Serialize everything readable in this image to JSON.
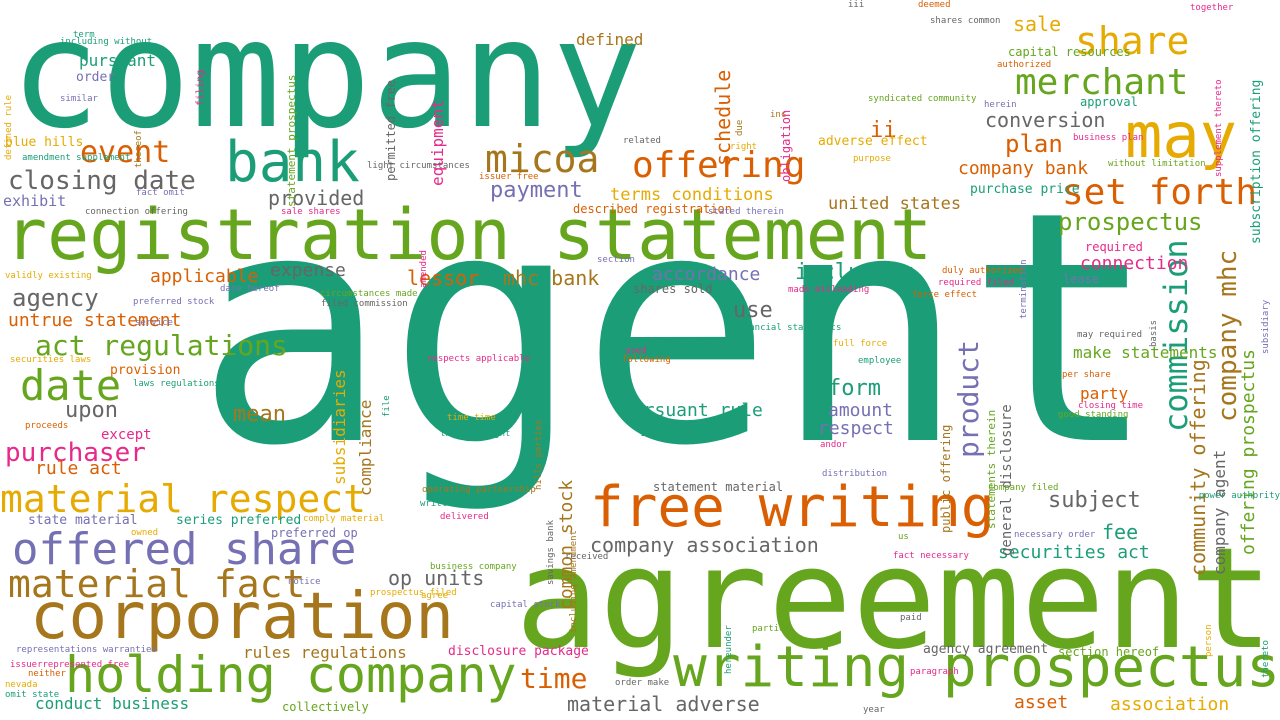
{
  "palette": {
    "teal": "#1b9e77",
    "orange": "#d95f02",
    "purple": "#7570b3",
    "pink": "#e7298a",
    "green": "#66a61e",
    "mustard": "#e6ab02",
    "brown": "#a6761d",
    "gray": "#666666"
  },
  "words": [
    {
      "text": "company",
      "color": "teal"
    },
    {
      "text": "agent",
      "color": "teal"
    },
    {
      "text": "agreement",
      "color": "green"
    },
    {
      "text": "registration statement",
      "color": "green"
    },
    {
      "text": "free writing",
      "color": "orange"
    },
    {
      "text": "writing prospectus",
      "color": "green"
    },
    {
      "text": "corporation",
      "color": "brown"
    },
    {
      "text": "holding company",
      "color": "green"
    },
    {
      "text": "bank",
      "color": "teal"
    },
    {
      "text": "may",
      "color": "mustard"
    },
    {
      "text": "material respect",
      "color": "mustard"
    },
    {
      "text": "offered share",
      "color": "purple"
    },
    {
      "text": "material fact",
      "color": "brown"
    },
    {
      "text": "date",
      "color": "green"
    },
    {
      "text": "micoa",
      "color": "brown"
    },
    {
      "text": "offering",
      "color": "orange"
    },
    {
      "text": "share",
      "color": "mustard"
    },
    {
      "text": "merchant",
      "color": "green"
    },
    {
      "text": "set forth",
      "color": "orange"
    },
    {
      "text": "commission",
      "color": "teal"
    },
    {
      "text": "company mhc",
      "color": "brown"
    },
    {
      "text": "product",
      "color": "purple"
    },
    {
      "text": "event",
      "color": "orange"
    },
    {
      "text": "closing date",
      "color": "gray"
    },
    {
      "text": "act regulations",
      "color": "green"
    },
    {
      "text": "purchaser",
      "color": "pink"
    },
    {
      "text": "time",
      "color": "orange"
    },
    {
      "text": "plan",
      "color": "orange"
    },
    {
      "text": "conversion",
      "color": "gray"
    },
    {
      "text": "prospectus",
      "color": "green"
    },
    {
      "text": "community offering",
      "color": "brown"
    },
    {
      "text": "offering prospectus",
      "color": "green"
    },
    {
      "text": "ii",
      "color": "orange"
    },
    {
      "text": "company bank",
      "color": "orange"
    },
    {
      "text": "united states",
      "color": "brown"
    },
    {
      "text": "payment",
      "color": "purple"
    },
    {
      "text": "terms conditions",
      "color": "mustard"
    },
    {
      "text": "provided",
      "color": "gray"
    },
    {
      "text": "including",
      "color": "teal"
    },
    {
      "text": "accordance",
      "color": "purple"
    },
    {
      "text": "mhc bank",
      "color": "brown"
    },
    {
      "text": "lessor",
      "color": "orange"
    },
    {
      "text": "expense",
      "color": "gray"
    },
    {
      "text": "applicable",
      "color": "orange"
    },
    {
      "text": "agency",
      "color": "gray"
    },
    {
      "text": "untrue statement",
      "color": "orange"
    },
    {
      "text": "use",
      "color": "gray"
    },
    {
      "text": "form",
      "color": "teal"
    },
    {
      "text": "amount",
      "color": "purple"
    },
    {
      "text": "respect",
      "color": "purple"
    },
    {
      "text": "pursuant rule",
      "color": "teal"
    },
    {
      "text": "include",
      "color": "teal"
    },
    {
      "text": "upon",
      "color": "gray"
    },
    {
      "text": "mean",
      "color": "brown"
    },
    {
      "text": "rule act",
      "color": "orange"
    },
    {
      "text": "subsidiaries",
      "color": "mustard"
    },
    {
      "text": "compliance",
      "color": "brown"
    },
    {
      "text": "common stock",
      "color": "brown"
    },
    {
      "text": "company association",
      "color": "gray"
    },
    {
      "text": "subject",
      "color": "gray"
    },
    {
      "text": "fee",
      "color": "teal"
    },
    {
      "text": "securities act",
      "color": "teal"
    },
    {
      "text": "op units",
      "color": "gray"
    },
    {
      "text": "rules regulations",
      "color": "brown"
    },
    {
      "text": "conduct business",
      "color": "teal"
    },
    {
      "text": "material adverse",
      "color": "gray"
    },
    {
      "text": "asset",
      "color": "orange"
    },
    {
      "text": "association",
      "color": "mustard"
    },
    {
      "text": "section hereof",
      "color": "green"
    },
    {
      "text": "agency agreement",
      "color": "gray"
    },
    {
      "text": "disclosure package",
      "color": "pink"
    },
    {
      "text": "collectively",
      "color": "green"
    },
    {
      "text": "sale",
      "color": "mustard"
    },
    {
      "text": "defined",
      "color": "brown"
    },
    {
      "text": "schedule",
      "color": "orange"
    },
    {
      "text": "pursuant",
      "color": "teal"
    },
    {
      "text": "order",
      "color": "purple"
    },
    {
      "text": "blue hills",
      "color": "mustard"
    },
    {
      "text": "exhibit",
      "color": "purple"
    },
    {
      "text": "equipment",
      "color": "pink"
    },
    {
      "text": "permitted free",
      "color": "gray"
    },
    {
      "text": "statement prospectus",
      "color": "green"
    },
    {
      "text": "capital resources",
      "color": "green"
    },
    {
      "text": "approval",
      "color": "teal"
    },
    {
      "text": "subscription offering",
      "color": "teal"
    },
    {
      "text": "obligation",
      "color": "pink"
    },
    {
      "text": "adverse effect",
      "color": "mustard"
    },
    {
      "text": "purchase price",
      "color": "teal"
    },
    {
      "text": "connection",
      "color": "pink"
    },
    {
      "text": "lease",
      "color": "purple"
    },
    {
      "text": "required",
      "color": "pink"
    },
    {
      "text": "make statements",
      "color": "green"
    },
    {
      "text": "party",
      "color": "orange"
    },
    {
      "text": "claim",
      "color": "teal"
    },
    {
      "text": "except",
      "color": "pink"
    },
    {
      "text": "provision",
      "color": "orange"
    },
    {
      "text": "state material",
      "color": "purple"
    },
    {
      "text": "series preferred",
      "color": "teal"
    },
    {
      "text": "preferred op",
      "color": "purple"
    },
    {
      "text": "shares sold",
      "color": "gray"
    },
    {
      "text": "statement material",
      "color": "gray"
    },
    {
      "text": "described registration",
      "color": "orange"
    },
    {
      "text": "public offering",
      "color": "brown"
    },
    {
      "text": "statements therein",
      "color": "green"
    },
    {
      "text": "general disclosure",
      "color": "gray"
    },
    {
      "text": "company agent",
      "color": "gray"
    },
    {
      "text": "thereof",
      "color": "brown"
    },
    {
      "text": "filing",
      "color": "pink"
    },
    {
      "text": "term",
      "color": "teal"
    },
    {
      "text": "including without",
      "color": "teal"
    },
    {
      "text": "similar",
      "color": "purple"
    },
    {
      "text": "defined rule",
      "color": "mustard"
    },
    {
      "text": "amendment supplement",
      "color": "teal"
    },
    {
      "text": "fact omit",
      "color": "purple"
    },
    {
      "text": "connection offering",
      "color": "gray"
    },
    {
      "text": "sale shares",
      "color": "pink"
    },
    {
      "text": "validly existing",
      "color": "mustard"
    },
    {
      "text": "preferred stock",
      "color": "purple"
    },
    {
      "text": "service",
      "color": "purple"
    },
    {
      "text": "date hereof",
      "color": "purple"
    },
    {
      "text": "circumstances made",
      "color": "green"
    },
    {
      "text": "filed commission",
      "color": "gray"
    },
    {
      "text": "securities laws",
      "color": "mustard"
    },
    {
      "text": "laws regulations",
      "color": "teal"
    },
    {
      "text": "proceeds",
      "color": "orange"
    },
    {
      "text": "file",
      "color": "teal"
    },
    {
      "text": "respects applicable",
      "color": "pink"
    },
    {
      "text": "time time",
      "color": "mustard"
    },
    {
      "text": "therein light",
      "color": "teal"
    },
    {
      "text": "hills parties",
      "color": "brown"
    },
    {
      "text": "savings bank",
      "color": "gray"
    },
    {
      "text": "including amendment",
      "color": "brown"
    },
    {
      "text": "operating partnership",
      "color": "brown"
    },
    {
      "text": "written notice",
      "color": "teal"
    },
    {
      "text": "delivered",
      "color": "pink"
    },
    {
      "text": "used",
      "color": "pink"
    },
    {
      "text": "following",
      "color": "orange"
    },
    {
      "text": "full force",
      "color": "mustard"
    },
    {
      "text": "employee",
      "color": "teal"
    },
    {
      "text": "andor",
      "color": "pink"
    },
    {
      "text": "distribution",
      "color": "purple"
    },
    {
      "text": "company filed",
      "color": "green"
    },
    {
      "text": "power authority",
      "color": "teal"
    },
    {
      "text": "us",
      "color": "green"
    },
    {
      "text": "fact necessary",
      "color": "pink"
    },
    {
      "text": "necessary order",
      "color": "purple"
    },
    {
      "text": "may required",
      "color": "gray"
    },
    {
      "text": "per share",
      "color": "orange"
    },
    {
      "text": "closing time",
      "color": "pink"
    },
    {
      "text": "good standing",
      "color": "green"
    },
    {
      "text": "duly authorized",
      "color": "orange"
    },
    {
      "text": "required filed",
      "color": "pink"
    },
    {
      "text": "force effect",
      "color": "orange"
    },
    {
      "text": "made misleading",
      "color": "pink"
    },
    {
      "text": "financial statements",
      "color": "teal"
    },
    {
      "text": "section",
      "color": "purple"
    },
    {
      "text": "basis",
      "color": "gray"
    },
    {
      "text": "termination",
      "color": "purple"
    },
    {
      "text": "subsidiary",
      "color": "purple"
    },
    {
      "text": "without limitation",
      "color": "green"
    },
    {
      "text": "business plan",
      "color": "pink"
    },
    {
      "text": "herein",
      "color": "purple"
    },
    {
      "text": "authorized",
      "color": "orange"
    },
    {
      "text": "supplement thereto",
      "color": "pink"
    },
    {
      "text": "together",
      "color": "pink"
    },
    {
      "text": "shares common",
      "color": "gray"
    },
    {
      "text": "deemed",
      "color": "orange"
    },
    {
      "text": "iii",
      "color": "gray"
    },
    {
      "text": "due",
      "color": "brown"
    },
    {
      "text": "syndicated community",
      "color": "green"
    },
    {
      "text": "inc",
      "color": "brown"
    },
    {
      "text": "right",
      "color": "mustard"
    },
    {
      "text": "related",
      "color": "gray"
    },
    {
      "text": "purpose",
      "color": "mustard"
    },
    {
      "text": "issuer free",
      "color": "orange"
    },
    {
      "text": "stated therein",
      "color": "purple"
    },
    {
      "text": "amended",
      "color": "pink"
    },
    {
      "text": "business company",
      "color": "green"
    },
    {
      "text": "received",
      "color": "gray"
    },
    {
      "text": "notice",
      "color": "purple"
    },
    {
      "text": "prospectus filed",
      "color": "mustard"
    },
    {
      "text": "agree",
      "color": "mustard"
    },
    {
      "text": "capital stock",
      "color": "purple"
    },
    {
      "text": "owned",
      "color": "mustard"
    },
    {
      "text": "comply material",
      "color": "mustard"
    },
    {
      "text": "hereunder",
      "color": "teal"
    },
    {
      "text": "parties",
      "color": "green"
    },
    {
      "text": "paid",
      "color": "gray"
    },
    {
      "text": "person",
      "color": "mustard"
    },
    {
      "text": "thereto",
      "color": "teal"
    },
    {
      "text": "representations warranties",
      "color": "purple"
    },
    {
      "text": "issuerrepresented free",
      "color": "pink"
    },
    {
      "text": "neither",
      "color": "orange"
    },
    {
      "text": "nevada",
      "color": "mustard"
    },
    {
      "text": "omit state",
      "color": "teal"
    },
    {
      "text": "order make",
      "color": "gray"
    },
    {
      "text": "paragraph",
      "color": "pink"
    },
    {
      "text": "year",
      "color": "gray"
    },
    {
      "text": "light circumstances",
      "color": "gray"
    },
    {
      "text": "ots",
      "color": "gray"
    }
  ]
}
